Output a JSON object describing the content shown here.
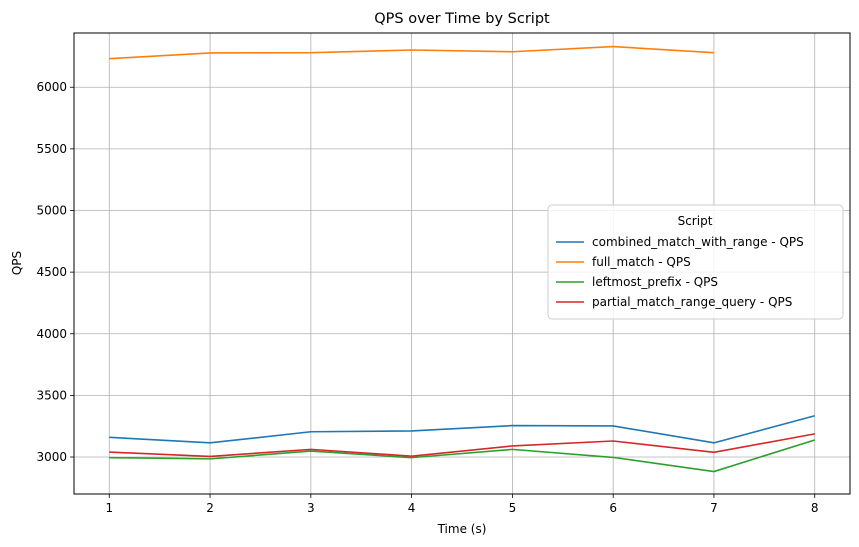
{
  "chart_data": {
    "type": "line",
    "title": "QPS over Time by Script",
    "xlabel": "Time (s)",
    "ylabel": "QPS",
    "x": [
      1,
      2,
      3,
      4,
      5,
      6,
      7,
      8
    ],
    "xticks": [
      "1",
      "2",
      "3",
      "4",
      "5",
      "6",
      "7",
      "8"
    ],
    "yticks": [
      "3000",
      "3500",
      "4000",
      "4500",
      "5000",
      "5500",
      "6000"
    ],
    "ylim": [
      2700,
      6440
    ],
    "xlim": [
      0.65,
      8.35
    ],
    "grid": true,
    "legend_title": "Script",
    "legend_position": "center-right",
    "series": [
      {
        "name": "combined_match_with_range - QPS",
        "color": "#1f77b4",
        "x": [
          1,
          2,
          3,
          4,
          5,
          6,
          7,
          8
        ],
        "values": [
          3160,
          3115,
          3205,
          3212,
          3255,
          3252,
          3115,
          3335
        ]
      },
      {
        "name": "full_match - QPS",
        "color": "#ff7f0e",
        "x": [
          1,
          2,
          3,
          4,
          5,
          6,
          7
        ],
        "values": [
          6232,
          6278,
          6280,
          6302,
          6288,
          6330,
          6280
        ]
      },
      {
        "name": "leftmost_prefix - QPS",
        "color": "#2ca02c",
        "x": [
          1,
          2,
          3,
          4,
          5,
          6,
          7,
          8
        ],
        "values": [
          2995,
          2985,
          3048,
          2995,
          3062,
          2997,
          2882,
          3138
        ]
      },
      {
        "name": "partial_match_range_query - QPS",
        "color": "#d62728",
        "x": [
          1,
          2,
          3,
          4,
          5,
          6,
          7,
          8
        ],
        "values": [
          3040,
          3005,
          3062,
          3007,
          3090,
          3130,
          3038,
          3188
        ]
      }
    ]
  }
}
